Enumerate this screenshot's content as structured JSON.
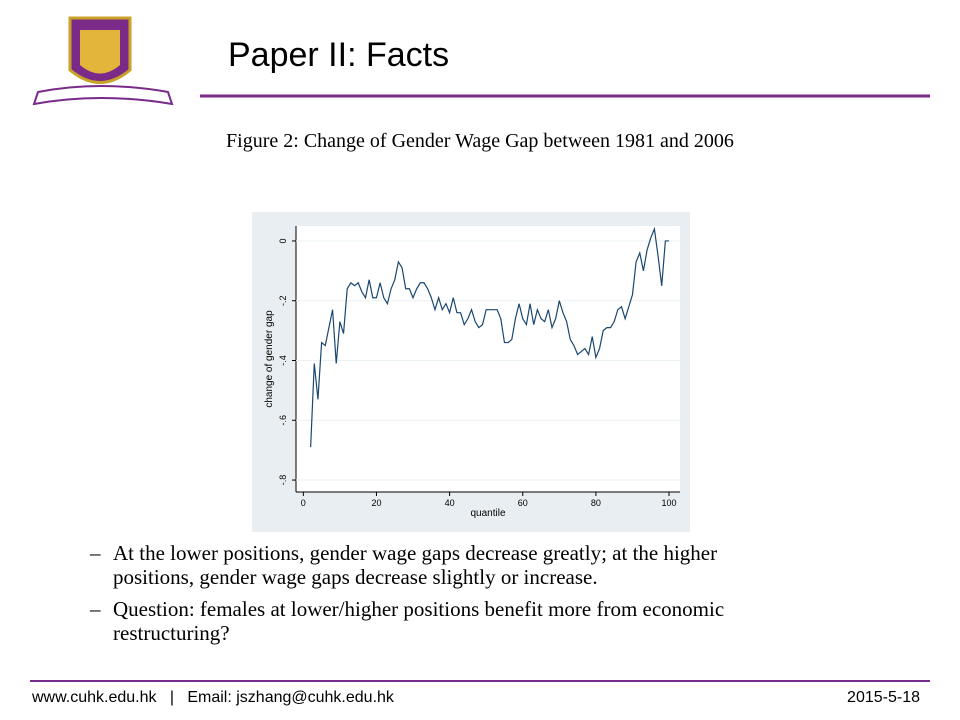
{
  "slide": {
    "title": "Paper II: Facts",
    "caption": "Figure 2: Change of Gender Wage Gap between 1981 and 2006",
    "bullets": [
      [
        "At the lower positions, gender wage gaps decrease greatly; at the higher",
        "positions, gender wage gaps decrease slightly or increase."
      ],
      [
        "Question: females at lower/higher positions benefit more from economic",
        "restructuring?"
      ]
    ],
    "footer_left": "www.cuhk.edu.hk   |   Email: jszhang@cuhk.edu.hk",
    "footer_right": "2015-5-18"
  },
  "chart_data": {
    "type": "line",
    "x_label": "quantile",
    "y_label": "change of gender gap",
    "color": "#1a476f",
    "grid": true,
    "xlim": [
      -2,
      103
    ],
    "ylim": [
      -0.84,
      0.05
    ],
    "xticks": [
      0,
      20,
      40,
      60,
      80,
      100
    ],
    "yticks": [
      {
        "value": -0.8,
        "label": "-.8"
      },
      {
        "value": -0.6,
        "label": "-.6"
      },
      {
        "value": -0.4,
        "label": "-.4"
      },
      {
        "value": -0.2,
        "label": "-.2"
      },
      0
    ],
    "x": [
      2,
      3,
      4,
      5,
      6,
      7,
      8,
      9,
      10,
      11,
      12,
      13,
      14,
      15,
      16,
      17,
      18,
      19,
      20,
      21,
      22,
      23,
      24,
      25,
      26,
      27,
      28,
      29,
      30,
      31,
      32,
      33,
      34,
      35,
      36,
      37,
      38,
      39,
      40,
      41,
      42,
      43,
      44,
      45,
      46,
      47,
      48,
      49,
      50,
      51,
      52,
      53,
      54,
      55,
      56,
      57,
      58,
      59,
      60,
      61,
      62,
      63,
      64,
      65,
      66,
      67,
      68,
      69,
      70,
      71,
      72,
      73,
      74,
      75,
      76,
      77,
      78,
      79,
      80,
      81,
      82,
      83,
      84,
      85,
      86,
      87,
      88,
      89,
      90,
      91,
      92,
      93,
      94,
      95,
      96,
      97,
      98,
      99,
      100
    ],
    "values": [
      -0.69,
      -0.41,
      -0.53,
      -0.34,
      -0.35,
      -0.29,
      -0.23,
      -0.41,
      -0.27,
      -0.31,
      -0.16,
      -0.14,
      -0.15,
      -0.14,
      -0.17,
      -0.19,
      -0.13,
      -0.19,
      -0.19,
      -0.14,
      -0.19,
      -0.21,
      -0.16,
      -0.13,
      -0.07,
      -0.09,
      -0.16,
      -0.16,
      -0.19,
      -0.16,
      -0.14,
      -0.14,
      -0.16,
      -0.19,
      -0.23,
      -0.19,
      -0.23,
      -0.21,
      -0.24,
      -0.19,
      -0.24,
      -0.24,
      -0.28,
      -0.26,
      -0.23,
      -0.27,
      -0.29,
      -0.28,
      -0.23,
      -0.23,
      -0.23,
      -0.23,
      -0.26,
      -0.34,
      -0.34,
      -0.33,
      -0.26,
      -0.21,
      -0.26,
      -0.28,
      -0.21,
      -0.28,
      -0.23,
      -0.26,
      -0.27,
      -0.23,
      -0.29,
      -0.26,
      -0.2,
      -0.24,
      -0.27,
      -0.33,
      -0.35,
      -0.38,
      -0.37,
      -0.36,
      -0.38,
      -0.32,
      -0.39,
      -0.36,
      -0.3,
      -0.29,
      -0.29,
      -0.27,
      -0.23,
      -0.22,
      -0.26,
      -0.22,
      -0.18,
      -0.07,
      -0.04,
      -0.1,
      -0.03,
      0.01,
      0.04,
      -0.05,
      -0.15,
      0,
      0
    ]
  }
}
